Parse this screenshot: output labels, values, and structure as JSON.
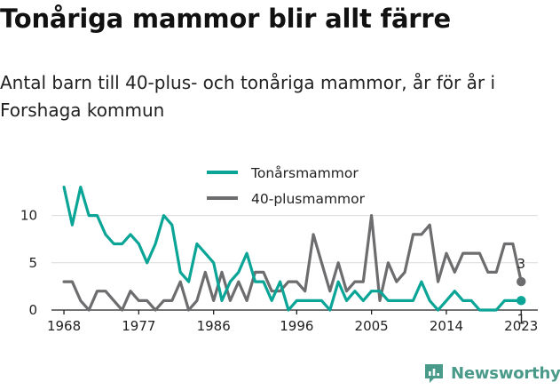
{
  "title": "Tonåriga mammor blir allt färre",
  "subtitle": "Antal barn till 40-plus- och tonåriga mammor, år för år i Forshaga kommun",
  "brand": {
    "name": "Newsworthy",
    "icon": "newsworthy-logo-icon"
  },
  "colors": {
    "teen": "#0aa596",
    "forty": "#6d6d6f",
    "grid": "#dcdcdc"
  },
  "chart_data": {
    "type": "line",
    "x": [
      1968,
      1969,
      1970,
      1971,
      1972,
      1973,
      1974,
      1975,
      1976,
      1977,
      1978,
      1979,
      1980,
      1981,
      1982,
      1983,
      1984,
      1985,
      1986,
      1987,
      1988,
      1989,
      1990,
      1991,
      1992,
      1993,
      1994,
      1995,
      1996,
      1997,
      1998,
      1999,
      2000,
      2001,
      2002,
      2003,
      2004,
      2005,
      2006,
      2007,
      2008,
      2009,
      2010,
      2011,
      2012,
      2013,
      2014,
      2015,
      2016,
      2017,
      2018,
      2019,
      2020,
      2021,
      2022,
      2023
    ],
    "xticks": [
      1968,
      1977,
      1986,
      1996,
      2005,
      2014,
      2023
    ],
    "yticks": [
      0,
      5,
      10
    ],
    "ylim": [
      0,
      14
    ],
    "xlim": [
      1966.5,
      2025
    ],
    "grid": "horizontal",
    "legend": "top-center",
    "series": [
      {
        "name": "Tonårsmammor",
        "key": "teen",
        "values": [
          13,
          9,
          13,
          10,
          10,
          8,
          7,
          7,
          8,
          7,
          5,
          7,
          10,
          9,
          4,
          3,
          7,
          6,
          5,
          1,
          3,
          4,
          6,
          3,
          3,
          1,
          3,
          0,
          1,
          1,
          1,
          1,
          0,
          3,
          1,
          2,
          1,
          2,
          2,
          1,
          1,
          1,
          1,
          3,
          1,
          0,
          1,
          2,
          1,
          1,
          0,
          0,
          0,
          1,
          1,
          1
        ],
        "end_label": "1"
      },
      {
        "name": "40-plusmammor",
        "key": "forty",
        "values": [
          3,
          3,
          1,
          0,
          2,
          2,
          1,
          0,
          2,
          1,
          1,
          0,
          1,
          1,
          3,
          0,
          1,
          4,
          1,
          4,
          1,
          3,
          1,
          4,
          4,
          2,
          2,
          3,
          3,
          2,
          8,
          5,
          2,
          5,
          2,
          3,
          3,
          10,
          1,
          5,
          3,
          4,
          8,
          8,
          9,
          3,
          6,
          4,
          6,
          6,
          6,
          4,
          4,
          7,
          7,
          3
        ],
        "end_label": "3"
      }
    ]
  }
}
